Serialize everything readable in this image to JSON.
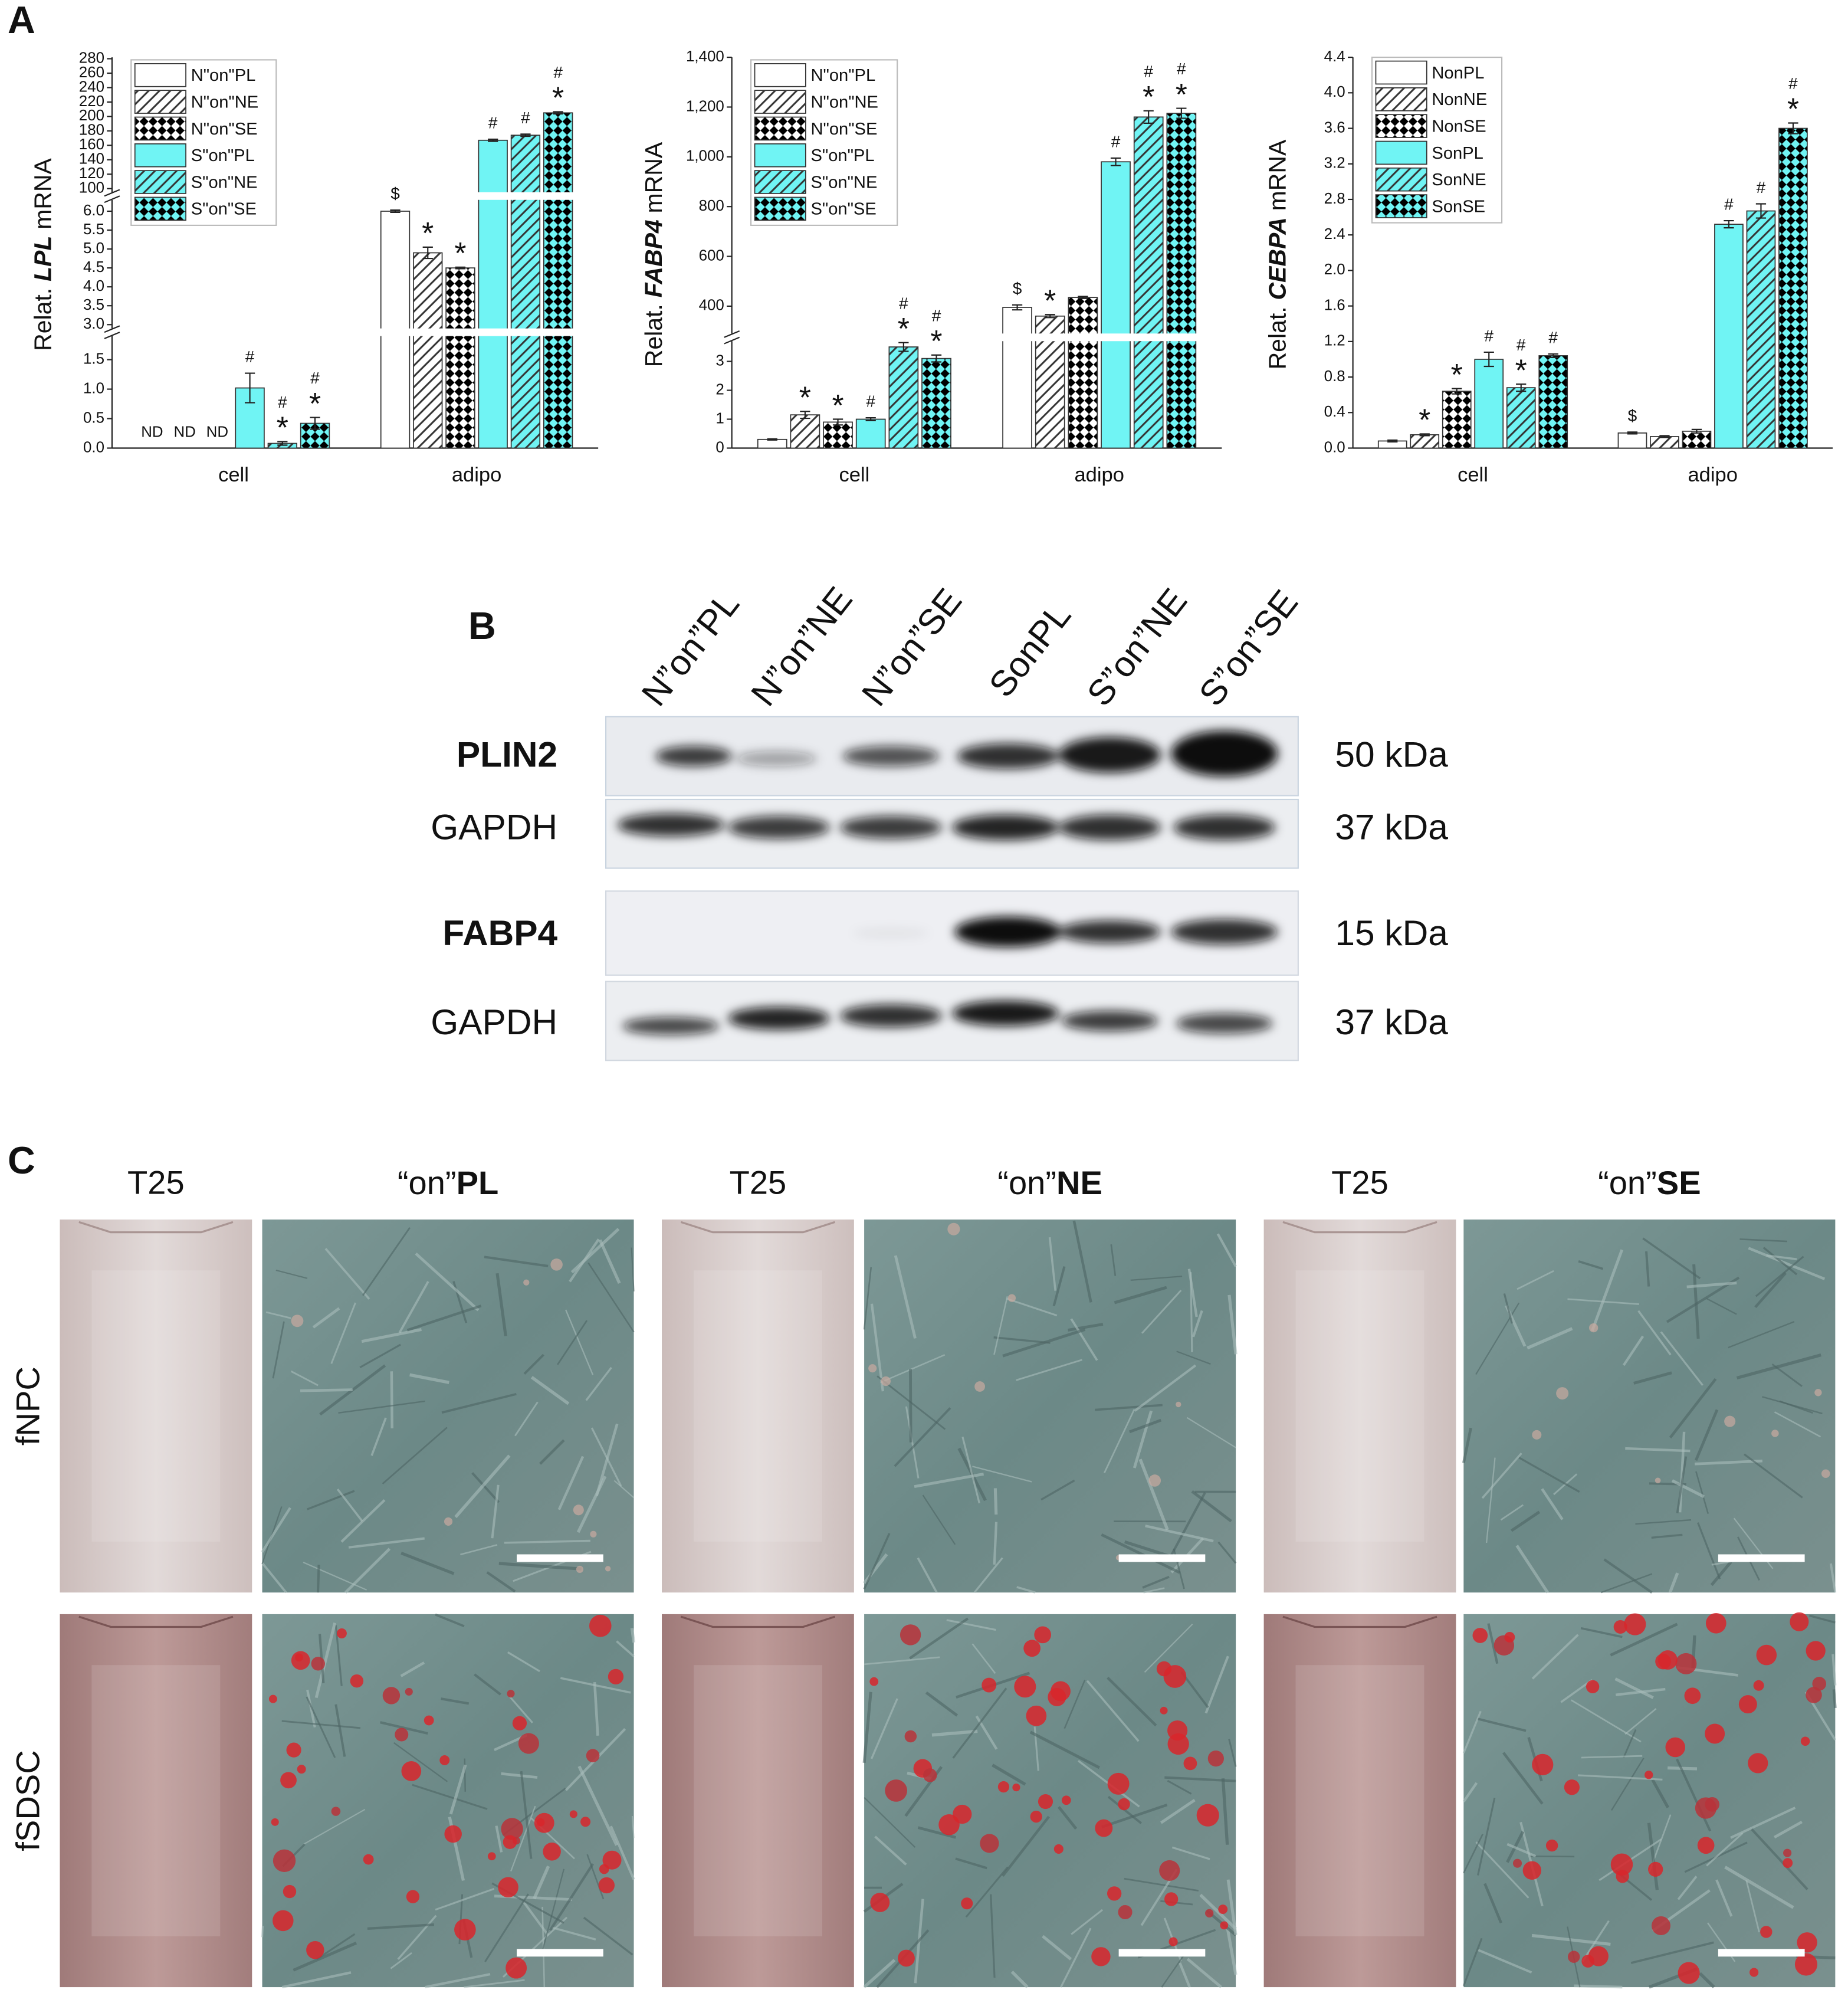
{
  "panel_labels": [
    "A",
    "B",
    "C"
  ],
  "chart_data": [
    {
      "type": "bar",
      "ylabel": {
        "prefix": "Relat.",
        "gene": "LPL",
        "suffix": "mRNA"
      },
      "categories": [
        "cell",
        "adipo"
      ],
      "y_segments": [
        {
          "ylim": [
            0,
            1.9
          ],
          "yticks": [
            {
              "value": 0,
              "label": "0.0"
            },
            0.5,
            {
              "value": 1,
              "label": "1.0"
            },
            1.5
          ]
        },
        {
          "ylim": [
            2.9,
            6.3
          ],
          "yticks": [
            {
              "value": 3,
              "label": "3.0"
            },
            3.5,
            {
              "value": 4,
              "label": "4.0"
            },
            4.5,
            {
              "value": 5,
              "label": "5.0"
            },
            5.5,
            {
              "value": 6,
              "label": "6.0"
            }
          ]
        },
        {
          "ylim": [
            95,
            282
          ],
          "yticks": [
            100,
            120,
            140,
            160,
            180,
            200,
            220,
            240,
            260,
            280
          ]
        }
      ],
      "series": [
        {
          "name": "N\"on\"PL",
          "color": "#ffffff",
          "pattern": "none",
          "values": [
            null,
            6.0
          ],
          "errors": [
            null,
            0.03
          ],
          "value_labels": [
            "ND",
            null
          ],
          "significance": [
            null,
            [
              "$"
            ]
          ]
        },
        {
          "name": "N\"on\"NE",
          "color": "#ffffff",
          "pattern": "hatch",
          "values": [
            null,
            4.9
          ],
          "errors": [
            null,
            0.15
          ],
          "value_labels": [
            "ND",
            null
          ],
          "significance": [
            null,
            [
              "*"
            ]
          ]
        },
        {
          "name": "N\"on\"SE",
          "color": "#ffffff",
          "pattern": "checker",
          "values": [
            null,
            4.5
          ],
          "errors": [
            null,
            0.02
          ],
          "value_labels": [
            "ND",
            null
          ],
          "significance": [
            null,
            [
              "*"
            ]
          ]
        },
        {
          "name": "S\"on\"PL",
          "color": "#70f4f4",
          "pattern": "none",
          "values": [
            1.02,
            167
          ],
          "errors": [
            0.25,
            1.5
          ],
          "significance": [
            [
              "#"
            ],
            [
              "#"
            ]
          ]
        },
        {
          "name": "S\"on\"NE",
          "color": "#70f4f4",
          "pattern": "hatch",
          "values": [
            0.08,
            174
          ],
          "errors": [
            0.03,
            1.5
          ],
          "significance": [
            [
              "#",
              "*"
            ],
            [
              "#"
            ]
          ]
        },
        {
          "name": "S\"on\"SE",
          "color": "#70f4f4",
          "pattern": "checker",
          "values": [
            0.42,
            205
          ],
          "errors": [
            0.1,
            1.5
          ],
          "significance": [
            [
              "#",
              "*"
            ],
            [
              "#",
              "*"
            ]
          ]
        }
      ]
    },
    {
      "type": "bar",
      "ylabel": {
        "prefix": "Relat.",
        "gene": "FABP4",
        "suffix": "mRNA"
      },
      "categories": [
        "cell",
        "adipo"
      ],
      "y_segments": [
        {
          "ylim": [
            0,
            3.7
          ],
          "yticks": [
            0,
            1,
            2,
            3
          ]
        },
        {
          "ylim": [
            290,
            1400
          ],
          "yticks": [
            400,
            600,
            800,
            {
              "value": 1000,
              "label": "1,000"
            },
            {
              "value": 1200,
              "label": "1,200"
            },
            {
              "value": 1400,
              "label": "1,400"
            }
          ]
        }
      ],
      "series": [
        {
          "name": "N\"on\"PL",
          "color": "#ffffff",
          "pattern": "none",
          "values": [
            0.3,
            395
          ],
          "errors": [
            0.02,
            10
          ],
          "significance": [
            null,
            [
              "$"
            ]
          ]
        },
        {
          "name": "N\"on\"NE",
          "color": "#ffffff",
          "pattern": "hatch",
          "values": [
            1.15,
            360
          ],
          "errors": [
            0.12,
            6
          ],
          "significance": [
            [
              "*"
            ],
            [
              "*"
            ]
          ]
        },
        {
          "name": "N\"on\"SE",
          "color": "#ffffff",
          "pattern": "checker",
          "values": [
            0.9,
            435
          ],
          "errors": [
            0.1,
            4
          ],
          "significance": [
            [
              "*"
            ],
            null
          ]
        },
        {
          "name": "S\"on\"PL",
          "color": "#70f4f4",
          "pattern": "none",
          "values": [
            1.0,
            980
          ],
          "errors": [
            0.05,
            15
          ],
          "significance": [
            [
              "#"
            ],
            [
              "#"
            ]
          ]
        },
        {
          "name": "S\"on\"NE",
          "color": "#70f4f4",
          "pattern": "hatch",
          "values": [
            3.5,
            1160
          ],
          "errors": [
            0.15,
            25
          ],
          "significance": [
            [
              "#",
              "*"
            ],
            [
              "#",
              "*"
            ]
          ]
        },
        {
          "name": "S\"on\"SE",
          "color": "#70f4f4",
          "pattern": "checker",
          "values": [
            3.1,
            1175
          ],
          "errors": [
            0.12,
            20
          ],
          "significance": [
            [
              "#",
              "*"
            ],
            [
              "#",
              "*"
            ]
          ]
        }
      ]
    },
    {
      "type": "bar",
      "ylabel": {
        "prefix": "Relat.",
        "gene": "CEBPA",
        "suffix": "mRNA"
      },
      "categories": [
        "cell",
        "adipo"
      ],
      "ylim": [
        0,
        4.4
      ],
      "yticks": [
        {
          "value": 0,
          "label": "0.0"
        },
        0.4,
        0.8,
        1.2,
        1.6,
        {
          "value": 2,
          "label": "2.0"
        },
        2.4,
        2.8,
        3.2,
        3.6,
        {
          "value": 4,
          "label": "4.0"
        },
        4.4
      ],
      "series": [
        {
          "name": "NonPL",
          "color": "#ffffff",
          "pattern": "none",
          "values": [
            0.08,
            0.17
          ],
          "errors": [
            0.01,
            0.01
          ],
          "significance": [
            null,
            [
              "$"
            ]
          ]
        },
        {
          "name": "NonNE",
          "color": "#ffffff",
          "pattern": "hatch",
          "values": [
            0.15,
            0.13
          ],
          "errors": [
            0.01,
            0.01
          ],
          "significance": [
            [
              "*"
            ],
            null
          ]
        },
        {
          "name": "NonSE",
          "color": "#ffffff",
          "pattern": "checker",
          "values": [
            0.64,
            0.19
          ],
          "errors": [
            0.03,
            0.02
          ],
          "significance": [
            [
              "*"
            ],
            null
          ]
        },
        {
          "name": "SonPL",
          "color": "#70f4f4",
          "pattern": "none",
          "values": [
            1.0,
            2.52
          ],
          "errors": [
            0.08,
            0.04
          ],
          "significance": [
            [
              "#"
            ],
            [
              "#"
            ]
          ]
        },
        {
          "name": "SonNE",
          "color": "#70f4f4",
          "pattern": "hatch",
          "values": [
            0.68,
            2.67
          ],
          "errors": [
            0.04,
            0.08
          ],
          "significance": [
            [
              "#",
              "*"
            ],
            [
              "#"
            ]
          ]
        },
        {
          "name": "SonSE",
          "color": "#70f4f4",
          "pattern": "checker",
          "values": [
            1.04,
            3.6
          ],
          "errors": [
            0.02,
            0.06
          ],
          "significance": [
            [
              "#"
            ],
            [
              "#",
              "*"
            ]
          ]
        }
      ]
    }
  ],
  "western_blot": {
    "lanes": [
      "N”on”PL",
      "N”on”NE",
      "N”on”SE",
      "SonPL",
      "S”on”NE",
      "S”on”SE"
    ],
    "rows": [
      {
        "protein": "PLIN2",
        "size": "50 kDa"
      },
      {
        "protein": "GAPDH",
        "size": "37 kDa"
      },
      {
        "protein": "FABP4",
        "size": "15 kDa"
      },
      {
        "protein": "GAPDH",
        "size": "37 kDa"
      }
    ]
  },
  "micrographs": {
    "columns": [
      {
        "flask": "T25",
        "prefix": "“on”",
        "surface": "PL"
      },
      {
        "flask": "T25",
        "prefix": "“on”",
        "surface": "NE"
      },
      {
        "flask": "T25",
        "prefix": "“on”",
        "surface": "SE"
      }
    ],
    "rows": [
      "fNPC",
      "fSDSC"
    ]
  }
}
